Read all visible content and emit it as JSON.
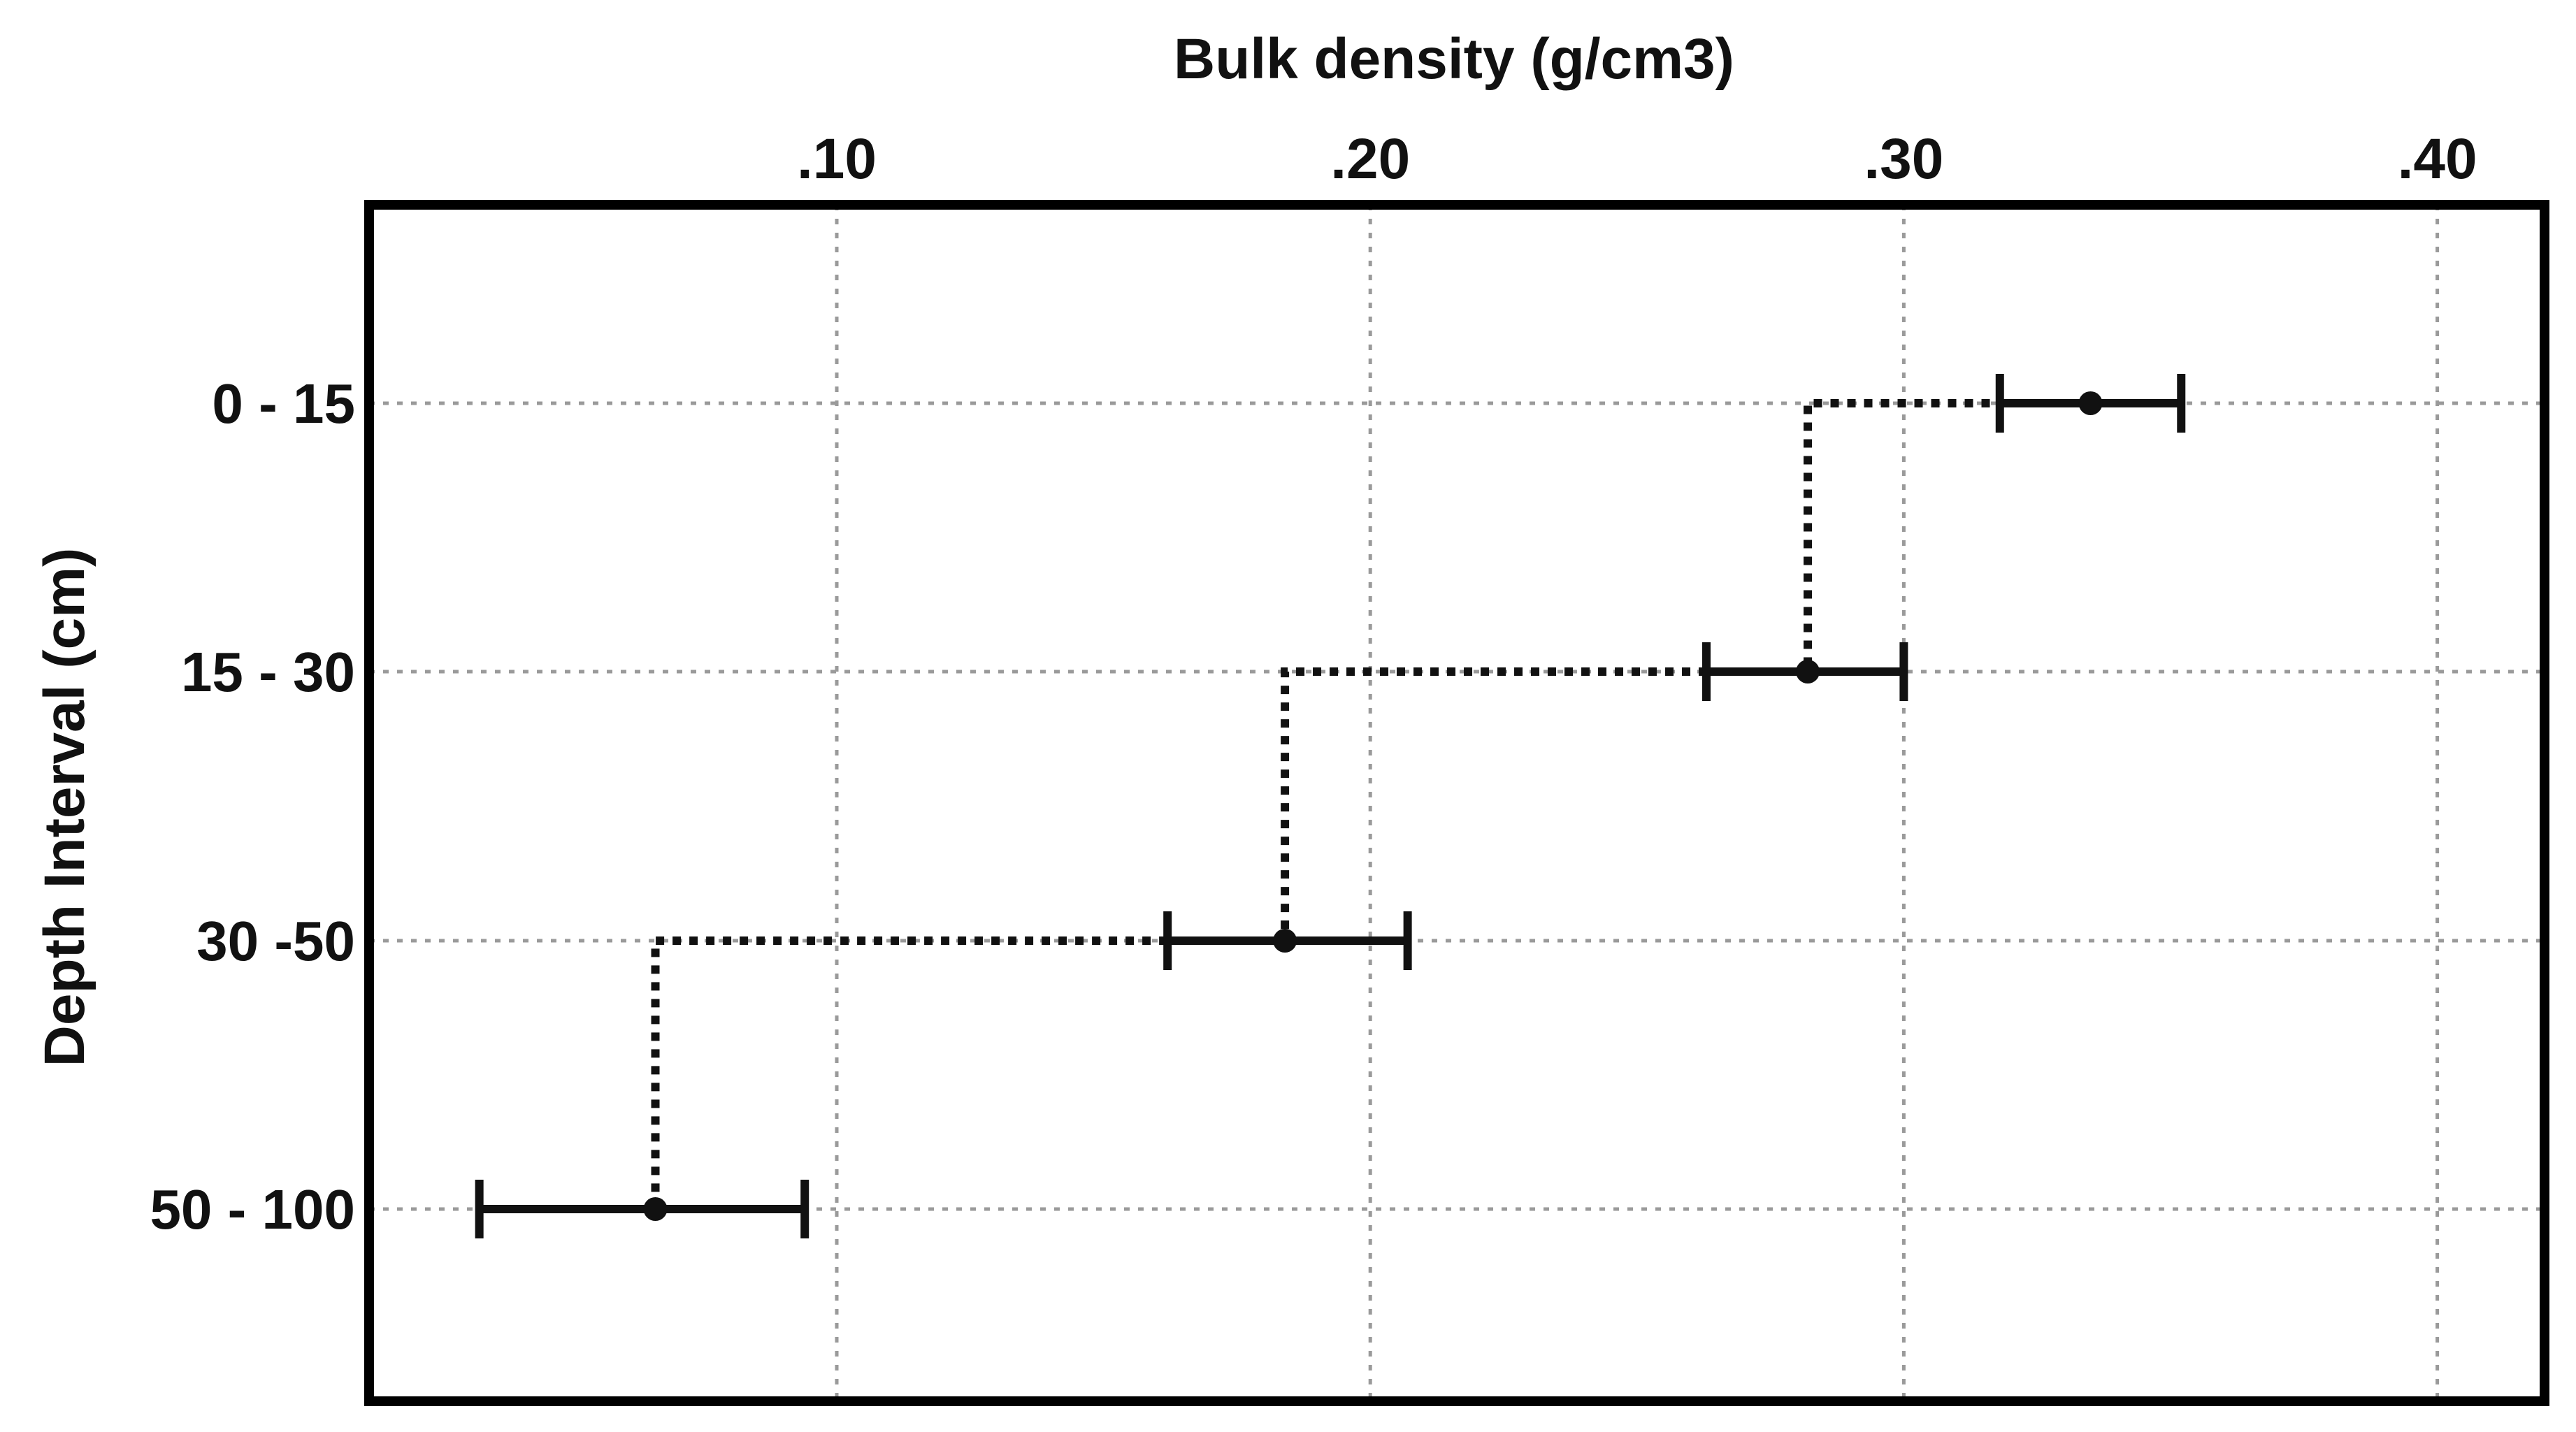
{
  "chart_data": {
    "type": "scatter",
    "title": "",
    "xlabel": "Bulk density (g/cm3)",
    "ylabel": "Depth Interval (cm)",
    "xlim": [
      0.012,
      0.41
    ],
    "x_axis_position": "top",
    "x_ticks": [
      0.1,
      0.2,
      0.3,
      0.4
    ],
    "x_tick_labels": [
      ".10",
      ".20",
      ".30",
      ".40"
    ],
    "categories": [
      "0 - 15",
      "15 - 30",
      "30 -50",
      "50 - 100"
    ],
    "values": [
      0.335,
      0.282,
      0.184,
      0.066
    ],
    "error_low": [
      0.318,
      0.263,
      0.162,
      0.033
    ],
    "error_high": [
      0.352,
      0.3,
      0.207,
      0.094
    ],
    "step_line": "dotted",
    "grid": true,
    "legend": "none",
    "colors": {
      "marks": "#111111",
      "grid": "#9a9a9a",
      "frame": "#000000"
    }
  }
}
